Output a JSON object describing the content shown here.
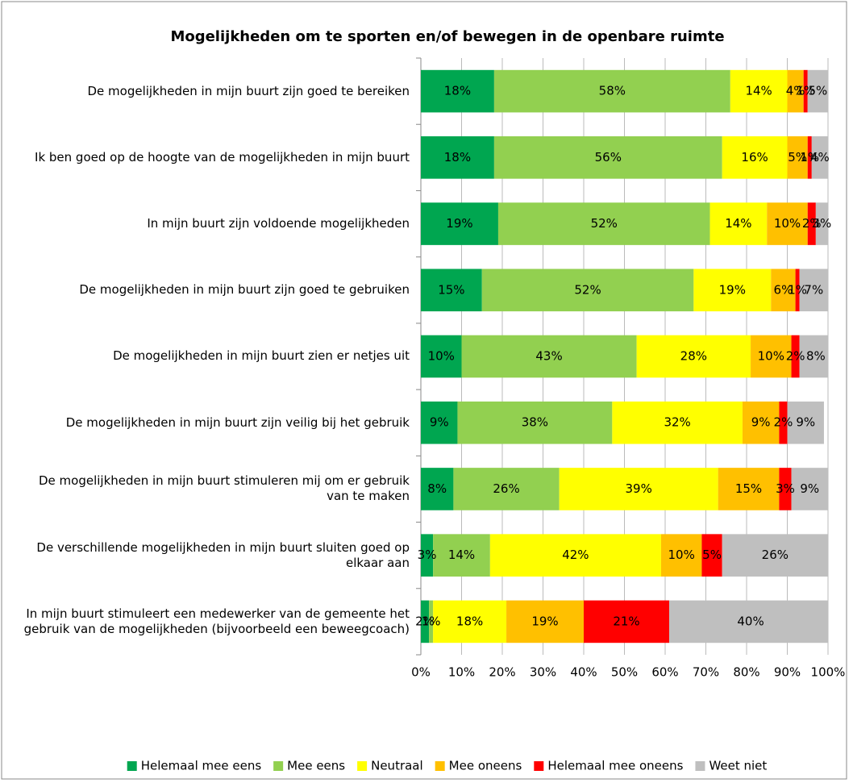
{
  "chart_data": {
    "type": "stacked_bar_horizontal",
    "title": "Mogelijkheden om te sporten en/of bewegen in de openbare ruimte",
    "categories": [
      "De mogelijkheden in mijn buurt zijn goed te bereiken",
      "Ik ben goed op de hoogte van de mogelijkheden in mijn buurt",
      "In mijn buurt zijn voldoende mogelijkheden",
      "De mogelijkheden in mijn buurt zijn goed te gebruiken",
      "De mogelijkheden in mijn buurt zien er netjes uit",
      "De mogelijkheden in mijn buurt zijn veilig bij het gebruik",
      "De mogelijkheden in mijn buurt stimuleren mij om er gebruik van te maken",
      "De verschillende mogelijkheden in mijn buurt sluiten goed op elkaar aan",
      "In mijn buurt stimuleert een medewerker van de gemeente het gebruik van de mogelijkheden (bijvoorbeeld een beweegcoach)"
    ],
    "series": [
      {
        "name": "Helemaal mee eens",
        "color": "#00a650",
        "values": [
          18,
          18,
          19,
          15,
          10,
          9,
          8,
          3,
          2
        ],
        "value_labels": [
          "18%",
          "18%",
          "19%",
          "15%",
          "10%",
          "9%",
          "8%",
          "3%",
          "2%"
        ]
      },
      {
        "name": "Mee eens",
        "color": "#92d050",
        "values": [
          58,
          56,
          52,
          52,
          43,
          38,
          26,
          14,
          1
        ],
        "value_labels": [
          "58%",
          "56%",
          "52%",
          "52%",
          "43%",
          "38%",
          "26%",
          "14%",
          "1%"
        ]
      },
      {
        "name": "Neutraal",
        "color": "#ffff00",
        "values": [
          14,
          16,
          14,
          19,
          28,
          32,
          39,
          42,
          18
        ],
        "value_labels": [
          "14%",
          "16%",
          "14%",
          "19%",
          "28%",
          "32%",
          "39%",
          "42%",
          "18%"
        ]
      },
      {
        "name": "Mee oneens",
        "color": "#ffc000",
        "values": [
          4,
          5,
          10,
          6,
          10,
          9,
          15,
          10,
          19
        ],
        "value_labels": [
          "4%",
          "5%",
          "10%",
          "6%",
          "10%",
          "9%",
          "15%",
          "10%",
          "19%"
        ]
      },
      {
        "name": "Helemaal mee oneens",
        "color": "#ff0000",
        "values": [
          1,
          1,
          2,
          1,
          2,
          2,
          3,
          5,
          21
        ],
        "value_labels": [
          "1%",
          "1%",
          "2%",
          "1%",
          "2%",
          "2%",
          "3%",
          "5%",
          "21%"
        ]
      },
      {
        "name": "Weet niet",
        "color": "#bfbfbf",
        "values": [
          5,
          4,
          3,
          7,
          8,
          9,
          9,
          26,
          40
        ],
        "value_labels": [
          "5%",
          "4%",
          "3%",
          "7%",
          "8%",
          "9%",
          "9%",
          "26%",
          "40%"
        ]
      }
    ],
    "xlim": [
      0,
      100
    ],
    "xticks": [
      {
        "value": 0,
        "label": "0%"
      },
      {
        "value": 10,
        "label": "10%"
      },
      {
        "value": 20,
        "label": "20%"
      },
      {
        "value": 30,
        "label": "30%"
      },
      {
        "value": 40,
        "label": "40%"
      },
      {
        "value": 50,
        "label": "50%"
      },
      {
        "value": 60,
        "label": "60%"
      },
      {
        "value": 70,
        "label": "70%"
      },
      {
        "value": 80,
        "label": "80%"
      },
      {
        "value": 90,
        "label": "90%"
      },
      {
        "value": 100,
        "label": "100%"
      }
    ],
    "grid": true,
    "legend": "bottom"
  }
}
